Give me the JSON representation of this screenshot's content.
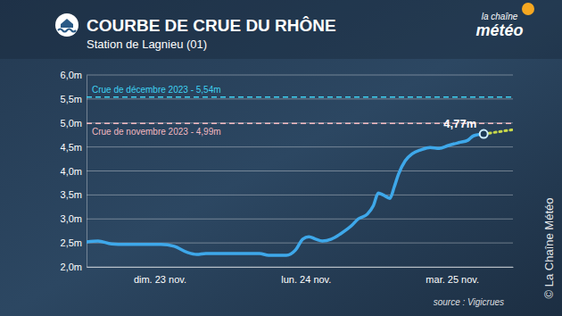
{
  "chart_data": {
    "type": "line",
    "title": "COURBE DE CRUE DU RHÔNE",
    "subtitle": "Station de Lagnieu (01)",
    "source": "source : Vigicrues",
    "copyright": "© La Chaîne Météo",
    "brand": [
      "la chaîne",
      "météo"
    ],
    "xlim": [
      0,
      70
    ],
    "xticks": [
      {
        "value": 12,
        "label": "dim. 23 nov."
      },
      {
        "value": 36,
        "label": "lun. 24 nov."
      },
      {
        "value": 60,
        "label": "mar. 25 nov."
      }
    ],
    "ylim": [
      2,
      6
    ],
    "yticks": [
      {
        "value": 2,
        "label": "2,0m"
      },
      {
        "value": 2.5,
        "label": "2,5m"
      },
      {
        "value": 3,
        "label": "3,0m"
      },
      {
        "value": 3.5,
        "label": "3,5m"
      },
      {
        "value": 4,
        "label": "4,0m"
      },
      {
        "value": 4.5,
        "label": "4,5m"
      },
      {
        "value": 5,
        "label": "5,0m"
      },
      {
        "value": 5.5,
        "label": "5,5m"
      },
      {
        "value": 6,
        "label": "6,0m"
      }
    ],
    "grid": true,
    "series": [
      {
        "color": "#3ea8ea",
        "line_style": "solid",
        "x": [
          0,
          1.9,
          4.1,
          6.3,
          9.3,
          12.2,
          14.4,
          16.6,
          18.1,
          19.6,
          22.5,
          25.5,
          28.4,
          29.9,
          32.8,
          34.3,
          35.5,
          36.5,
          37.6,
          38.7,
          40.2,
          41.7,
          43.5,
          44.6,
          46.1,
          47.1,
          47.9,
          48.7,
          49.8,
          50.5,
          51.2,
          52.3,
          53.5,
          54.9,
          56.4,
          57.9,
          59.4,
          61.1,
          62.6,
          63.5,
          65.2
        ],
        "values": [
          2.52,
          2.54,
          2.48,
          2.47,
          2.47,
          2.47,
          2.43,
          2.3,
          2.26,
          2.28,
          2.28,
          2.28,
          2.28,
          2.24,
          2.24,
          2.35,
          2.58,
          2.63,
          2.58,
          2.54,
          2.58,
          2.69,
          2.86,
          3.0,
          3.1,
          3.28,
          3.54,
          3.5,
          3.43,
          3.66,
          3.93,
          4.21,
          4.36,
          4.44,
          4.49,
          4.47,
          4.53,
          4.59,
          4.64,
          4.73,
          4.77
        ]
      },
      {
        "color": "#c9d94a",
        "line_style": "dotted",
        "x": [
          65.2,
          70
        ],
        "values": [
          4.77,
          4.86
        ]
      }
    ],
    "reference_lines": [
      {
        "label": "Crue de décembre 2023 - 5,54m",
        "value": 5.54,
        "color": "#3fd2f2",
        "line_style": "dashed"
      },
      {
        "label": "Crue de novembre 2023 - 4,99m",
        "value": 4.99,
        "color": "#f2b8c0",
        "line_style": "dashed"
      }
    ],
    "annotations": [
      {
        "text": "4,77m",
        "x": 65.2,
        "y": 4.77
      }
    ]
  }
}
